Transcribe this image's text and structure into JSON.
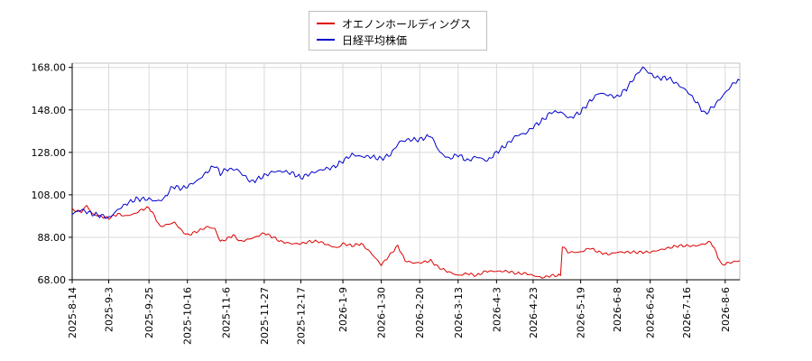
{
  "chart_data": {
    "type": "line",
    "xlim": [
      "2025-08-14",
      "2026-08-14"
    ],
    "ylim": [
      68,
      170
    ],
    "y_ticks": [
      68,
      88,
      108,
      128,
      148,
      168
    ],
    "y_tick_labels": [
      "68.00",
      "88.00",
      "108.00",
      "128.00",
      "148.00",
      "168.00"
    ],
    "x_ticks": [
      "2025-8-14",
      "2025-9-3",
      "2025-9-25",
      "2025-10-16",
      "2025-11-6",
      "2025-11-27",
      "2025-12-17",
      "2026-1-9",
      "2026-1-30",
      "2026-2-20",
      "2026-3-13",
      "2026-4-3",
      "2026-4-23",
      "2026-5-19",
      "2026-6-8",
      "2026-6-26",
      "2026-7-16",
      "2026-8-6"
    ],
    "grid": true,
    "legend_position": "top-center",
    "series": [
      {
        "name": "オエノンホールディングス",
        "color": "#dd0000",
        "points": [
          [
            "2025-08-14",
            101
          ],
          [
            "2025-08-19",
            100
          ],
          [
            "2025-08-22",
            103
          ],
          [
            "2025-08-25",
            99
          ],
          [
            "2025-08-29",
            98
          ],
          [
            "2025-09-03",
            97
          ],
          [
            "2025-09-08",
            99
          ],
          [
            "2025-09-12",
            98
          ],
          [
            "2025-09-17",
            99
          ],
          [
            "2025-09-21",
            101
          ],
          [
            "2025-09-25",
            102
          ],
          [
            "2025-09-28",
            98
          ],
          [
            "2025-10-01",
            93
          ],
          [
            "2025-10-05",
            94
          ],
          [
            "2025-10-09",
            95
          ],
          [
            "2025-10-13",
            91
          ],
          [
            "2025-10-16",
            89
          ],
          [
            "2025-10-22",
            91
          ],
          [
            "2025-10-27",
            93
          ],
          [
            "2025-10-31",
            92
          ],
          [
            "2025-11-03",
            86
          ],
          [
            "2025-11-06",
            87
          ],
          [
            "2025-11-10",
            89
          ],
          [
            "2025-11-14",
            86
          ],
          [
            "2025-11-18",
            87
          ],
          [
            "2025-11-22",
            88
          ],
          [
            "2025-11-27",
            90
          ],
          [
            "2025-12-02",
            88
          ],
          [
            "2025-12-06",
            86
          ],
          [
            "2025-12-12",
            85
          ],
          [
            "2025-12-17",
            85
          ],
          [
            "2025-12-22",
            86
          ],
          [
            "2025-12-27",
            86
          ],
          [
            "2026-01-02",
            84
          ],
          [
            "2026-01-06",
            83
          ],
          [
            "2026-01-09",
            85
          ],
          [
            "2026-01-14",
            84
          ],
          [
            "2026-01-19",
            85
          ],
          [
            "2026-01-24",
            81
          ],
          [
            "2026-01-30",
            75
          ],
          [
            "2026-02-04",
            80
          ],
          [
            "2026-02-08",
            84
          ],
          [
            "2026-02-12",
            77
          ],
          [
            "2026-02-16",
            76
          ],
          [
            "2026-02-20",
            76
          ],
          [
            "2026-02-26",
            77
          ],
          [
            "2026-03-02",
            74
          ],
          [
            "2026-03-07",
            72
          ],
          [
            "2026-03-13",
            70
          ],
          [
            "2026-03-18",
            71
          ],
          [
            "2026-03-23",
            70
          ],
          [
            "2026-03-28",
            72
          ],
          [
            "2026-04-03",
            72
          ],
          [
            "2026-04-09",
            72
          ],
          [
            "2026-04-14",
            71
          ],
          [
            "2026-04-19",
            71
          ],
          [
            "2026-04-23",
            70
          ],
          [
            "2026-04-28",
            69
          ],
          [
            "2026-05-03",
            70
          ],
          [
            "2026-05-08",
            70
          ],
          [
            "2026-05-09",
            84
          ],
          [
            "2026-05-12",
            81
          ],
          [
            "2026-05-19",
            81
          ],
          [
            "2026-05-24",
            83
          ],
          [
            "2026-05-29",
            81
          ],
          [
            "2026-06-03",
            80
          ],
          [
            "2026-06-08",
            81
          ],
          [
            "2026-06-13",
            81
          ],
          [
            "2026-06-18",
            81
          ],
          [
            "2026-06-26",
            81
          ],
          [
            "2026-07-01",
            82
          ],
          [
            "2026-07-06",
            83
          ],
          [
            "2026-07-11",
            84
          ],
          [
            "2026-07-16",
            84
          ],
          [
            "2026-07-21",
            84
          ],
          [
            "2026-07-26",
            85
          ],
          [
            "2026-07-29",
            86
          ],
          [
            "2026-08-01",
            81
          ],
          [
            "2026-08-04",
            75
          ],
          [
            "2026-08-08",
            76
          ],
          [
            "2026-08-14",
            77
          ]
        ]
      },
      {
        "name": "日経平均株価",
        "color": "#0000cc",
        "points": [
          [
            "2025-08-14",
            99
          ],
          [
            "2025-08-19",
            101
          ],
          [
            "2025-08-25",
            99
          ],
          [
            "2025-08-31",
            98
          ],
          [
            "2025-09-03",
            97
          ],
          [
            "2025-09-08",
            101
          ],
          [
            "2025-09-13",
            104
          ],
          [
            "2025-09-18",
            106
          ],
          [
            "2025-09-25",
            106
          ],
          [
            "2025-09-29",
            105
          ],
          [
            "2025-10-03",
            106
          ],
          [
            "2025-10-08",
            112
          ],
          [
            "2025-10-13",
            111
          ],
          [
            "2025-10-16",
            112
          ],
          [
            "2025-10-22",
            115
          ],
          [
            "2025-10-27",
            119
          ],
          [
            "2025-10-31",
            122
          ],
          [
            "2025-11-03",
            118
          ],
          [
            "2025-11-06",
            120
          ],
          [
            "2025-11-12",
            120
          ],
          [
            "2025-11-16",
            117
          ],
          [
            "2025-11-20",
            114
          ],
          [
            "2025-11-27",
            117
          ],
          [
            "2025-12-02",
            119
          ],
          [
            "2025-12-08",
            119
          ],
          [
            "2025-12-13",
            118
          ],
          [
            "2025-12-17",
            116
          ],
          [
            "2025-12-22",
            118
          ],
          [
            "2025-12-29",
            120
          ],
          [
            "2026-01-04",
            121
          ],
          [
            "2026-01-09",
            124
          ],
          [
            "2026-01-14",
            127
          ],
          [
            "2026-01-19",
            126
          ],
          [
            "2026-01-24",
            126
          ],
          [
            "2026-01-30",
            125
          ],
          [
            "2026-02-04",
            127
          ],
          [
            "2026-02-09",
            133
          ],
          [
            "2026-02-14",
            134
          ],
          [
            "2026-02-20",
            134
          ],
          [
            "2026-02-26",
            136
          ],
          [
            "2026-03-03",
            128
          ],
          [
            "2026-03-08",
            125
          ],
          [
            "2026-03-13",
            127
          ],
          [
            "2026-03-18",
            124
          ],
          [
            "2026-03-23",
            126
          ],
          [
            "2026-03-29",
            124
          ],
          [
            "2026-04-03",
            128
          ],
          [
            "2026-04-09",
            132
          ],
          [
            "2026-04-14",
            136
          ],
          [
            "2026-04-19",
            137
          ],
          [
            "2026-04-23",
            140
          ],
          [
            "2026-04-28",
            143
          ],
          [
            "2026-05-03",
            147
          ],
          [
            "2026-05-08",
            147
          ],
          [
            "2026-05-13",
            144
          ],
          [
            "2026-05-19",
            147
          ],
          [
            "2026-05-24",
            152
          ],
          [
            "2026-05-29",
            156
          ],
          [
            "2026-06-03",
            155
          ],
          [
            "2026-06-08",
            154
          ],
          [
            "2026-06-13",
            158
          ],
          [
            "2026-06-18",
            164
          ],
          [
            "2026-06-22",
            168
          ],
          [
            "2026-06-26",
            165
          ],
          [
            "2026-06-30",
            163
          ],
          [
            "2026-07-06",
            163
          ],
          [
            "2026-07-11",
            160
          ],
          [
            "2026-07-16",
            157
          ],
          [
            "2026-07-21",
            152
          ],
          [
            "2026-07-26",
            146
          ],
          [
            "2026-07-31",
            150
          ],
          [
            "2026-08-06",
            156
          ],
          [
            "2026-08-11",
            161
          ],
          [
            "2026-08-14",
            162
          ]
        ]
      }
    ]
  }
}
